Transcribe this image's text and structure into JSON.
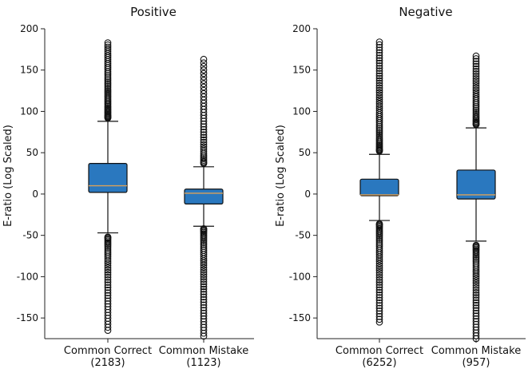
{
  "chart_data": [
    {
      "type": "box",
      "title": "Positive",
      "ylabel": "E-ratio (Log Scaled)",
      "ylim": [
        -175,
        200
      ],
      "yticks": [
        200,
        150,
        100,
        50,
        0,
        -50,
        -100,
        -150
      ],
      "categories": [
        {
          "label": "Common Correct",
          "count": "(2183)",
          "whislo": -47,
          "q1": 2,
          "med": 10,
          "q3": 37,
          "whishi": 88,
          "fliers_hi": {
            "from": 92,
            "to": 183,
            "n": 48
          },
          "fliers_lo": {
            "from": -52,
            "to": -165,
            "n": 42
          }
        },
        {
          "label": "Common Mistake",
          "count": "(1123)",
          "whislo": -39,
          "q1": -12,
          "med": 1,
          "q3": 6,
          "whishi": 33,
          "fliers_hi": {
            "from": 37,
            "to": 163,
            "n": 40
          },
          "fliers_lo": {
            "from": -42,
            "to": -172,
            "n": 50
          }
        }
      ]
    },
    {
      "type": "box",
      "title": "Negative",
      "ylabel": "E-ratio (Log Scaled)",
      "ylim": [
        -175,
        200
      ],
      "yticks": [
        200,
        150,
        100,
        50,
        0,
        -50,
        -100,
        -150
      ],
      "categories": [
        {
          "label": "Common Correct",
          "count": "(6252)",
          "whislo": -32,
          "q1": -2,
          "med": -1,
          "q3": 18,
          "whishi": 48,
          "fliers_hi": {
            "from": 52,
            "to": 184,
            "n": 55
          },
          "fliers_lo": {
            "from": -36,
            "to": -155,
            "n": 48
          }
        },
        {
          "label": "Common Mistake",
          "count": "(957)",
          "whislo": -57,
          "q1": -6,
          "med": -1,
          "q3": 29,
          "whishi": 80,
          "fliers_hi": {
            "from": 84,
            "to": 167,
            "n": 36
          },
          "fliers_lo": {
            "from": -62,
            "to": -175,
            "n": 44
          }
        }
      ]
    }
  ]
}
